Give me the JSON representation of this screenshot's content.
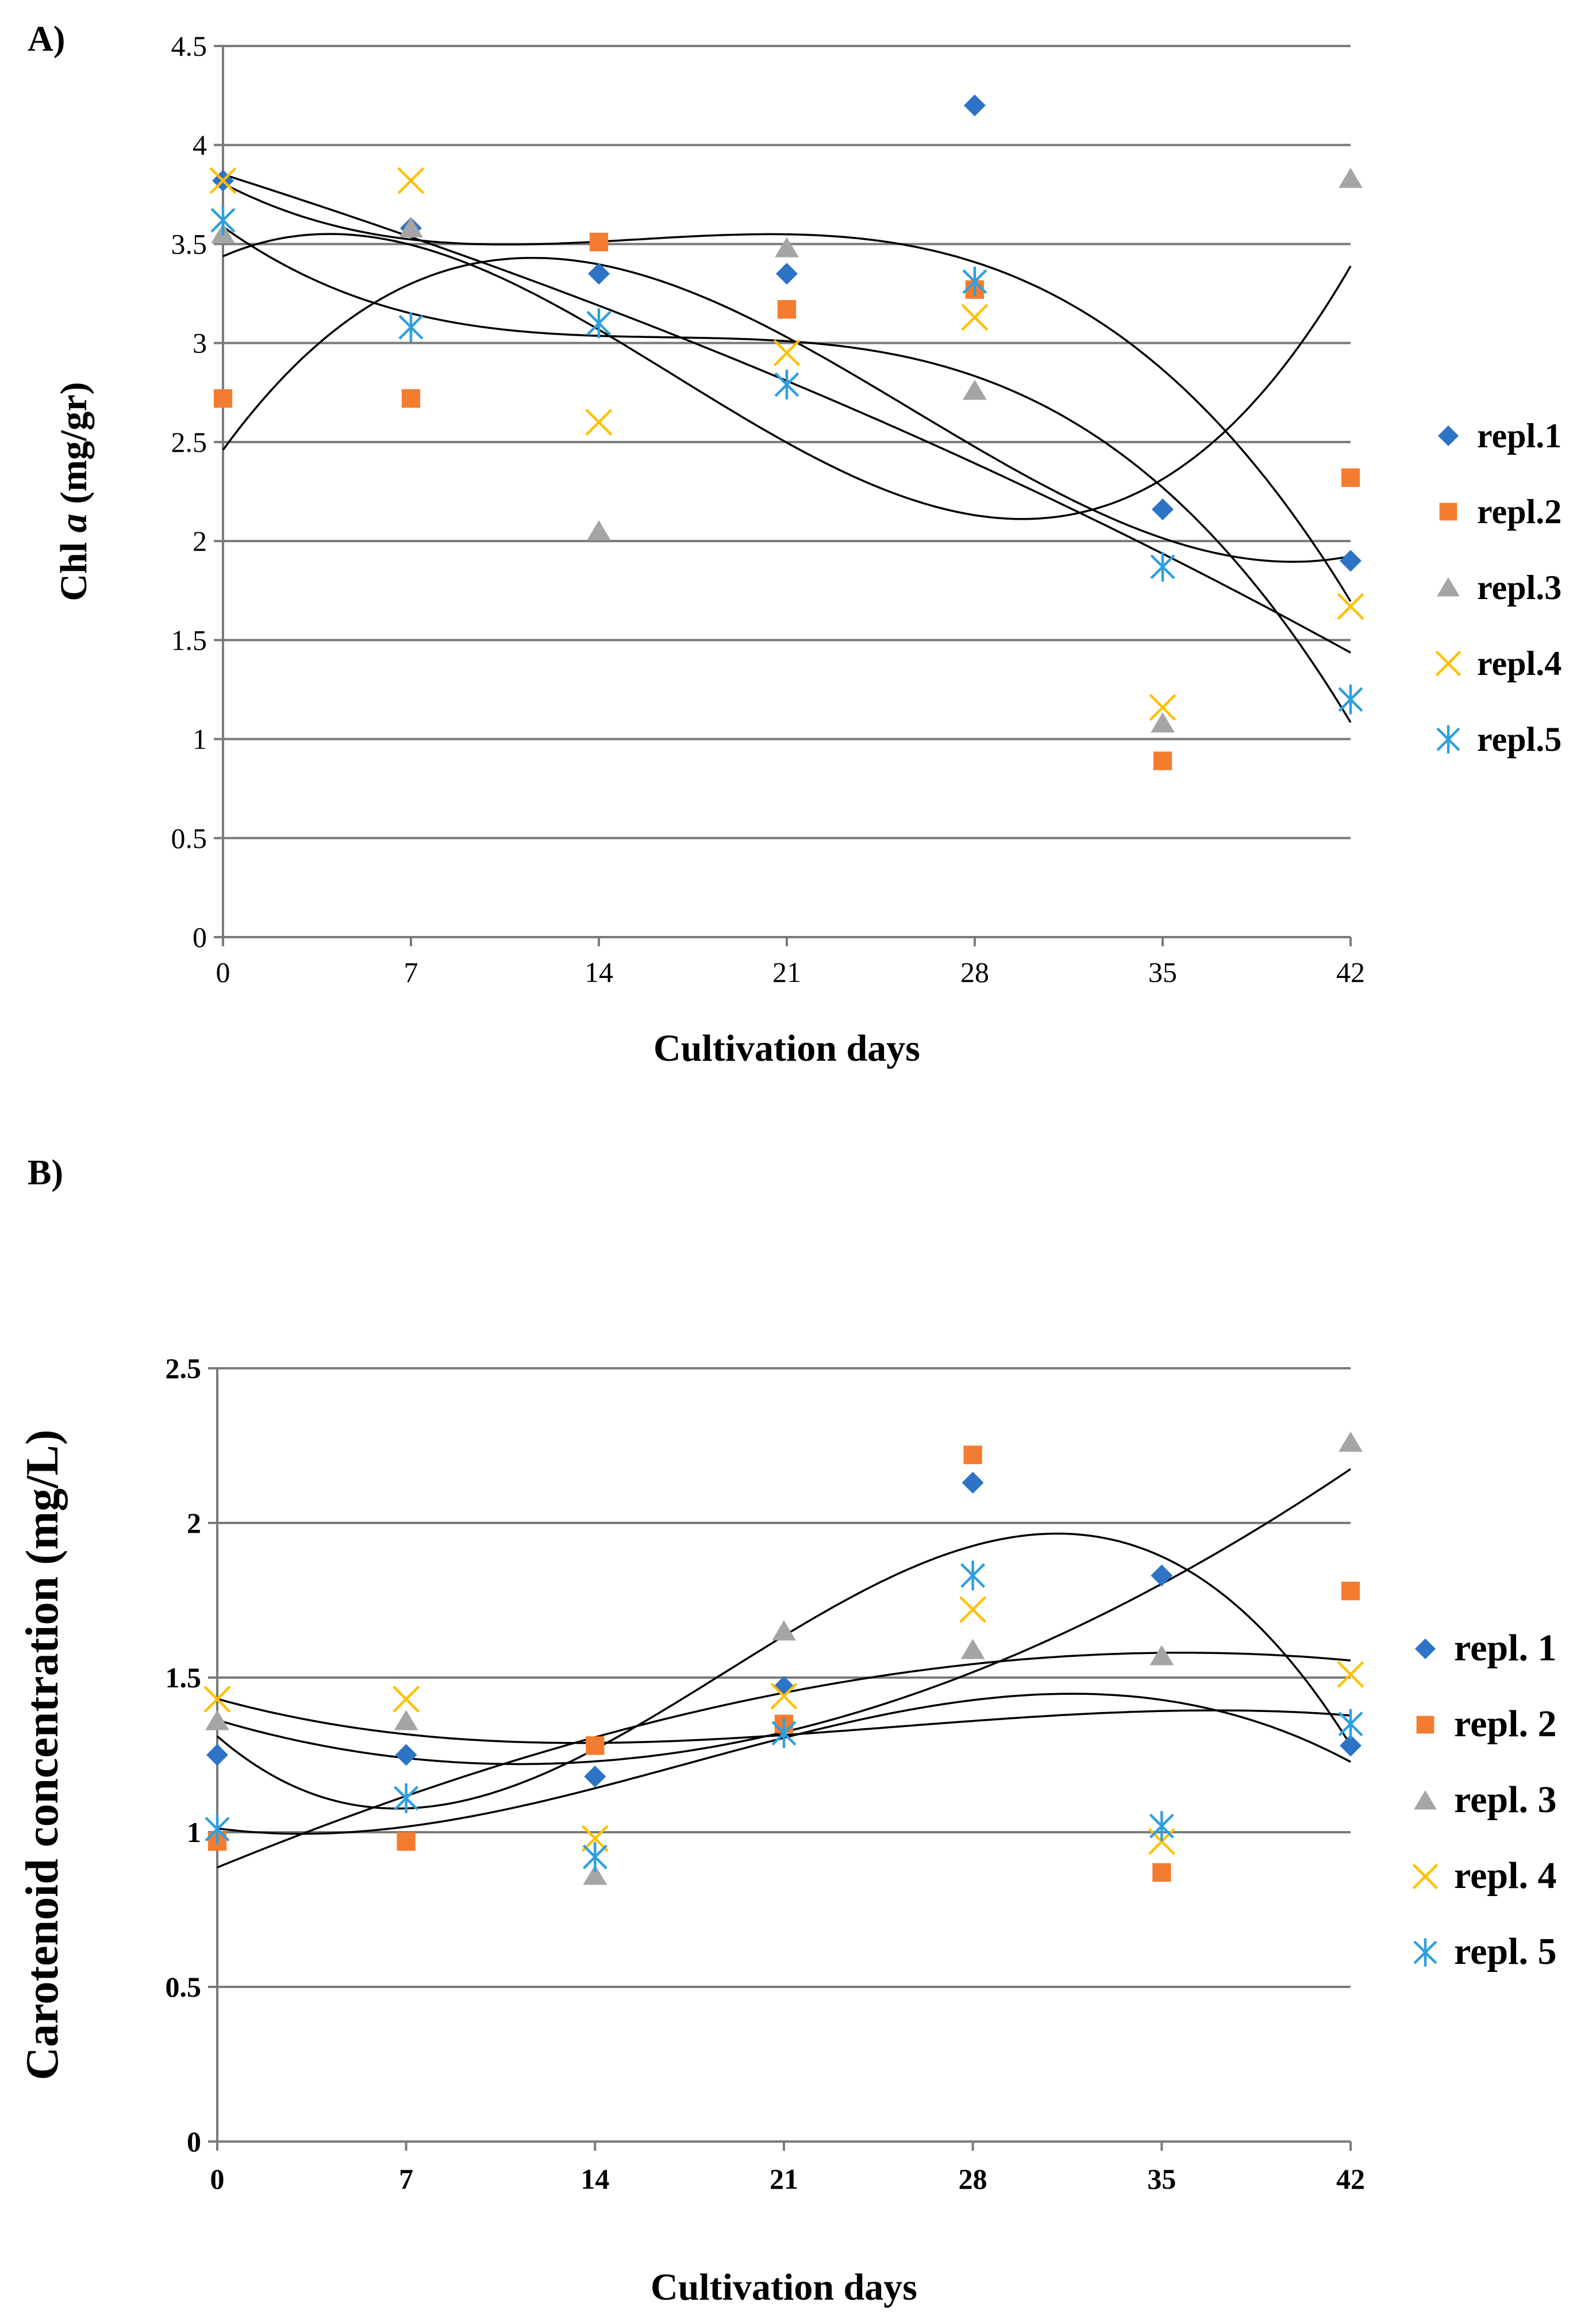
{
  "figure": {
    "panel_a_label": "A)",
    "panel_b_label": "B)"
  },
  "colors": {
    "repl1": "#2e73c5",
    "repl2": "#f47c30",
    "repl3": "#a5a5a5",
    "repl4": "#ffc000",
    "repl5": "#2e9fe0"
  },
  "chart_data": [
    {
      "type": "scatter",
      "title": "",
      "xlabel": "Cultivation days",
      "ylabel_main": "Chl ",
      "ylabel_italic": "a",
      "ylabel_unit": " (mg/gr)",
      "x": [
        0,
        7,
        14,
        21,
        28,
        35,
        42
      ],
      "xticks": [
        "0",
        "7",
        "14",
        "21",
        "28",
        "35",
        "42"
      ],
      "yticks": [
        "0",
        "0.5",
        "1",
        "1.5",
        "2",
        "2.5",
        "3",
        "3.5",
        "4",
        "4.5"
      ],
      "xlim": [
        0,
        42
      ],
      "ylim": [
        0,
        4.5
      ],
      "grid": true,
      "legend_position": "right",
      "trendline": "polynomial order 3",
      "series": [
        {
          "name": "repl.1",
          "marker": "diamond",
          "values": [
            3.82,
            3.58,
            3.35,
            3.35,
            4.2,
            2.16,
            1.9
          ]
        },
        {
          "name": "repl.2",
          "marker": "square",
          "values": [
            2.72,
            2.72,
            3.51,
            3.17,
            3.27,
            0.89,
            2.32
          ]
        },
        {
          "name": "repl.3",
          "marker": "triangle",
          "values": [
            3.55,
            3.58,
            2.05,
            3.48,
            2.76,
            1.08,
            3.83
          ]
        },
        {
          "name": "repl.4",
          "marker": "x",
          "values": [
            3.82,
            3.82,
            2.6,
            2.95,
            3.13,
            1.16,
            1.67
          ]
        },
        {
          "name": "repl.5",
          "marker": "asterisk",
          "values": [
            3.62,
            3.08,
            3.1,
            2.79,
            3.31,
            1.87,
            1.2
          ]
        }
      ]
    },
    {
      "type": "scatter",
      "title": "",
      "xlabel": "Cultivation days",
      "ylabel": "Carotenoid concentration (mg/L)",
      "x": [
        0,
        7,
        14,
        21,
        28,
        35,
        42
      ],
      "xticks": [
        "0",
        "7",
        "14",
        "21",
        "28",
        "35",
        "42"
      ],
      "yticks": [
        "0",
        "0.5",
        "1",
        "1.5",
        "2",
        "2.5"
      ],
      "xlim": [
        0,
        42
      ],
      "ylim": [
        0,
        2.5
      ],
      "grid": true,
      "legend_position": "right",
      "trendline": "polynomial order 3",
      "series": [
        {
          "name": "repl. 1",
          "marker": "diamond",
          "values": [
            1.25,
            1.25,
            1.18,
            1.47,
            2.13,
            1.83,
            1.28
          ]
        },
        {
          "name": "repl. 2",
          "marker": "square",
          "values": [
            0.97,
            0.97,
            1.28,
            1.35,
            2.22,
            0.87,
            1.78
          ]
        },
        {
          "name": "repl. 3",
          "marker": "triangle",
          "values": [
            1.36,
            1.36,
            0.86,
            1.65,
            1.59,
            1.57,
            2.26
          ]
        },
        {
          "name": "repl. 4",
          "marker": "x",
          "values": [
            1.43,
            1.43,
            0.98,
            1.44,
            1.72,
            0.97,
            1.51
          ]
        },
        {
          "name": "repl. 5",
          "marker": "asterisk",
          "values": [
            1.01,
            1.11,
            0.92,
            1.32,
            1.83,
            1.02,
            1.35
          ]
        }
      ]
    }
  ]
}
